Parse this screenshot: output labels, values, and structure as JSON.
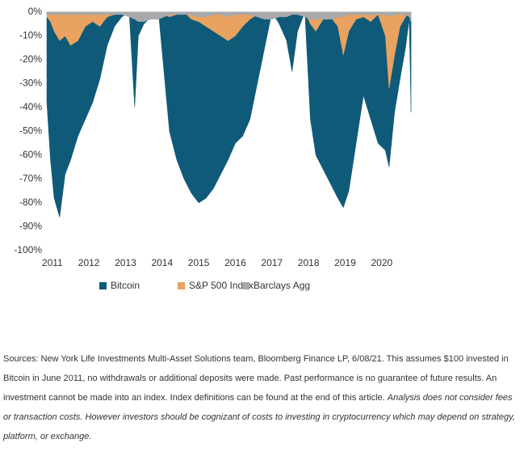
{
  "chart_data": {
    "type": "area",
    "x": [
      2010.85,
      2010.95,
      2011.05,
      2011.2,
      2011.35,
      2011.5,
      2011.7,
      2011.9,
      2012.1,
      2012.3,
      2012.5,
      2012.7,
      2012.9,
      2013.1,
      2013.25,
      2013.35,
      2013.5,
      2013.7,
      2013.9,
      2014.05,
      2014.2,
      2014.4,
      2014.6,
      2014.8,
      2015.0,
      2015.2,
      2015.4,
      2015.6,
      2015.8,
      2016.0,
      2016.2,
      2016.4,
      2016.6,
      2016.8,
      2017.0,
      2017.2,
      2017.4,
      2017.55,
      2017.7,
      2017.9,
      2018.05,
      2018.2,
      2018.4,
      2018.6,
      2018.8,
      2018.95,
      2019.1,
      2019.3,
      2019.5,
      2019.7,
      2019.9,
      2020.1,
      2020.2,
      2020.35,
      2020.5,
      2020.65,
      2020.75,
      2020.8
    ],
    "series": [
      {
        "name": "Bitcoin",
        "color": "#0f5a78",
        "values": [
          -38,
          -62,
          -78,
          -86,
          -68,
          -62,
          -52,
          -45,
          -38,
          -28,
          -14,
          -6,
          -2,
          0,
          -40,
          -10,
          -5,
          -2,
          0,
          -25,
          -50,
          -62,
          -70,
          -76,
          -80,
          -78,
          -74,
          -68,
          -62,
          -55,
          -52,
          -45,
          -30,
          -15,
          0,
          -5,
          -12,
          -25,
          -8,
          0,
          -45,
          -60,
          -66,
          -72,
          -78,
          -82,
          -75,
          -55,
          -35,
          -45,
          -55,
          -58,
          -65,
          -42,
          -28,
          -15,
          -3,
          -42
        ]
      },
      {
        "name": "S&P 500 Index",
        "color": "#e9a25f",
        "values": [
          -2,
          -4,
          -8,
          -12,
          -10,
          -14,
          -12,
          -6,
          -4,
          -6,
          -2,
          -1,
          0,
          0,
          -1,
          -2,
          0,
          0,
          0,
          -1,
          -2,
          -1,
          0,
          -3,
          -4,
          -6,
          -8,
          -10,
          -12,
          -10,
          -6,
          -3,
          -1,
          0,
          0,
          0,
          0,
          0,
          0,
          0,
          -5,
          -8,
          -3,
          -2,
          -6,
          -18,
          -8,
          -3,
          -2,
          -4,
          -1,
          -10,
          -32,
          -18,
          -6,
          -2,
          0,
          -4
        ]
      },
      {
        "name": "Barclays Agg",
        "color": "#a7a9ac",
        "values": [
          -1,
          -1,
          -1,
          -1,
          -1,
          -1,
          -1,
          -1,
          -1,
          -1,
          -1,
          -1,
          -1,
          -2,
          -3,
          -4,
          -4,
          -3,
          -3,
          -2,
          -1,
          -1,
          -1,
          -1,
          -2,
          -2,
          -1,
          -1,
          -2,
          -1,
          -1,
          -1,
          -2,
          -3,
          -3,
          -2,
          -2,
          -1,
          -1,
          -2,
          -3,
          -3,
          -3,
          -3,
          -2,
          -2,
          -1,
          -1,
          -1,
          -1,
          -1,
          -1,
          -2,
          -1,
          -1,
          -1,
          -2,
          -4
        ]
      }
    ],
    "xlim": [
      2010.85,
      2020.82
    ],
    "xticks": [
      2011,
      2012,
      2013,
      2014,
      2015,
      2016,
      2017,
      2018,
      2019,
      2020
    ],
    "ylim": [
      -100,
      0
    ],
    "yticks": [
      {
        "value": 0,
        "label": "0%"
      },
      {
        "value": -10,
        "label": "-10%"
      },
      {
        "value": -20,
        "label": "-20%"
      },
      {
        "value": -30,
        "label": "-30%"
      },
      {
        "value": -40,
        "label": "-40%"
      },
      {
        "value": -50,
        "label": "-50%"
      },
      {
        "value": -60,
        "label": "-60%"
      },
      {
        "value": -70,
        "label": "-70%"
      },
      {
        "value": -80,
        "label": "-80%"
      },
      {
        "value": -90,
        "label": "-90%"
      },
      {
        "value": -100,
        "label": "-100%"
      }
    ],
    "legend": "bottom"
  },
  "footnote": {
    "source": "Sources: New York Life Investments Multi-Asset Solutions team, Bloomberg Finance LP, 6/08/21. This assumes $100 invested in Bitcoin in June 2011, no withdrawals or additional deposits were made. Past performance is no guarantee of future results. An investment cannot be made into an index. Index definitions can be found at the end of this article.",
    "caveat": "Analysis does not consider fees or transaction costs. However investors should be cognizant of costs to investing in cryptocurrency which may depend on strategy, platform, or exchange."
  }
}
